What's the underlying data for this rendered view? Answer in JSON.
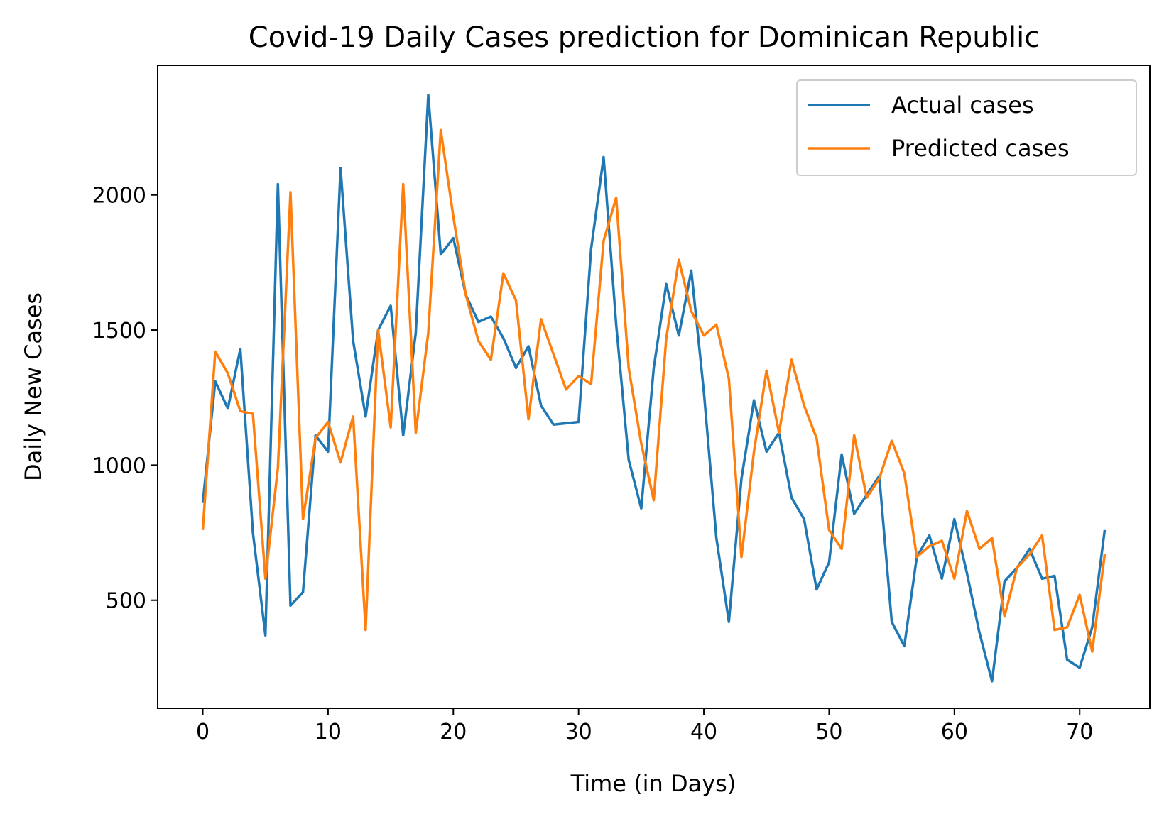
{
  "chart_data": {
    "type": "line",
    "title": "Covid-19 Daily Cases prediction for Dominican Republic",
    "xlabel": "Time (in Days)",
    "ylabel": "Daily New Cases",
    "xlim": [
      -3.6,
      75.6
    ],
    "ylim": [
      100,
      2480
    ],
    "xticks": [
      0,
      10,
      20,
      30,
      40,
      50,
      60,
      70
    ],
    "yticks": [
      500,
      1000,
      1500,
      2000
    ],
    "grid": false,
    "legend_position": "top-right",
    "series": [
      {
        "name": "Actual cases",
        "color": "#1f77b4",
        "x": [
          0,
          1,
          2,
          3,
          4,
          5,
          6,
          7,
          8,
          9,
          10,
          11,
          12,
          13,
          14,
          15,
          16,
          17,
          18,
          19,
          20,
          21,
          22,
          23,
          24,
          25,
          26,
          27,
          28,
          29,
          30,
          31,
          32,
          33,
          34,
          35,
          36,
          37,
          38,
          39,
          40,
          41,
          42,
          43,
          44,
          45,
          46,
          47,
          48,
          49,
          50,
          51,
          52,
          53,
          54,
          55,
          56,
          57,
          58,
          59,
          60,
          61,
          62,
          63,
          64,
          65,
          66,
          67,
          68,
          69,
          70,
          71,
          72
        ],
        "values": [
          860,
          1310,
          1210,
          1430,
          750,
          370,
          2040,
          480,
          530,
          1110,
          1050,
          2100,
          1460,
          1180,
          1500,
          1590,
          1110,
          1490,
          2370,
          1780,
          1840,
          1630,
          1530,
          1550,
          1470,
          1360,
          1440,
          1220,
          1150,
          1155,
          1160,
          1800,
          2140,
          1520,
          1020,
          840,
          1360,
          1670,
          1480,
          1720,
          1270,
          730,
          420,
          950,
          1240,
          1050,
          1120,
          880,
          800,
          540,
          640,
          1040,
          820,
          890,
          960,
          420,
          330,
          660,
          740,
          580,
          800,
          600,
          380,
          200,
          570,
          620,
          690,
          580,
          590,
          280,
          250,
          400,
          760
        ]
      },
      {
        "name": "Predicted cases",
        "color": "#ff7f0e",
        "x": [
          0,
          1,
          2,
          3,
          4,
          5,
          6,
          7,
          8,
          9,
          10,
          11,
          12,
          13,
          14,
          15,
          16,
          17,
          18,
          19,
          20,
          21,
          22,
          23,
          24,
          25,
          26,
          27,
          28,
          29,
          30,
          31,
          32,
          33,
          34,
          35,
          36,
          37,
          38,
          39,
          40,
          41,
          42,
          43,
          44,
          45,
          46,
          47,
          48,
          49,
          50,
          51,
          52,
          53,
          54,
          55,
          56,
          57,
          58,
          59,
          60,
          61,
          62,
          63,
          64,
          65,
          66,
          67,
          68,
          69,
          70,
          71,
          72
        ],
        "values": [
          760,
          1420,
          1340,
          1200,
          1190,
          580,
          990,
          2010,
          800,
          1100,
          1160,
          1010,
          1180,
          390,
          1500,
          1140,
          2040,
          1120,
          1490,
          2240,
          1920,
          1630,
          1460,
          1390,
          1710,
          1610,
          1170,
          1540,
          1410,
          1280,
          1330,
          1300,
          1830,
          1990,
          1360,
          1080,
          870,
          1470,
          1760,
          1570,
          1480,
          1520,
          1320,
          660,
          1050,
          1350,
          1120,
          1390,
          1220,
          1100,
          760,
          690,
          1110,
          880,
          950,
          1090,
          970,
          660,
          700,
          720,
          580,
          830,
          690,
          730,
          440,
          620,
          670,
          740,
          390,
          400,
          520,
          310,
          670
        ]
      }
    ]
  }
}
